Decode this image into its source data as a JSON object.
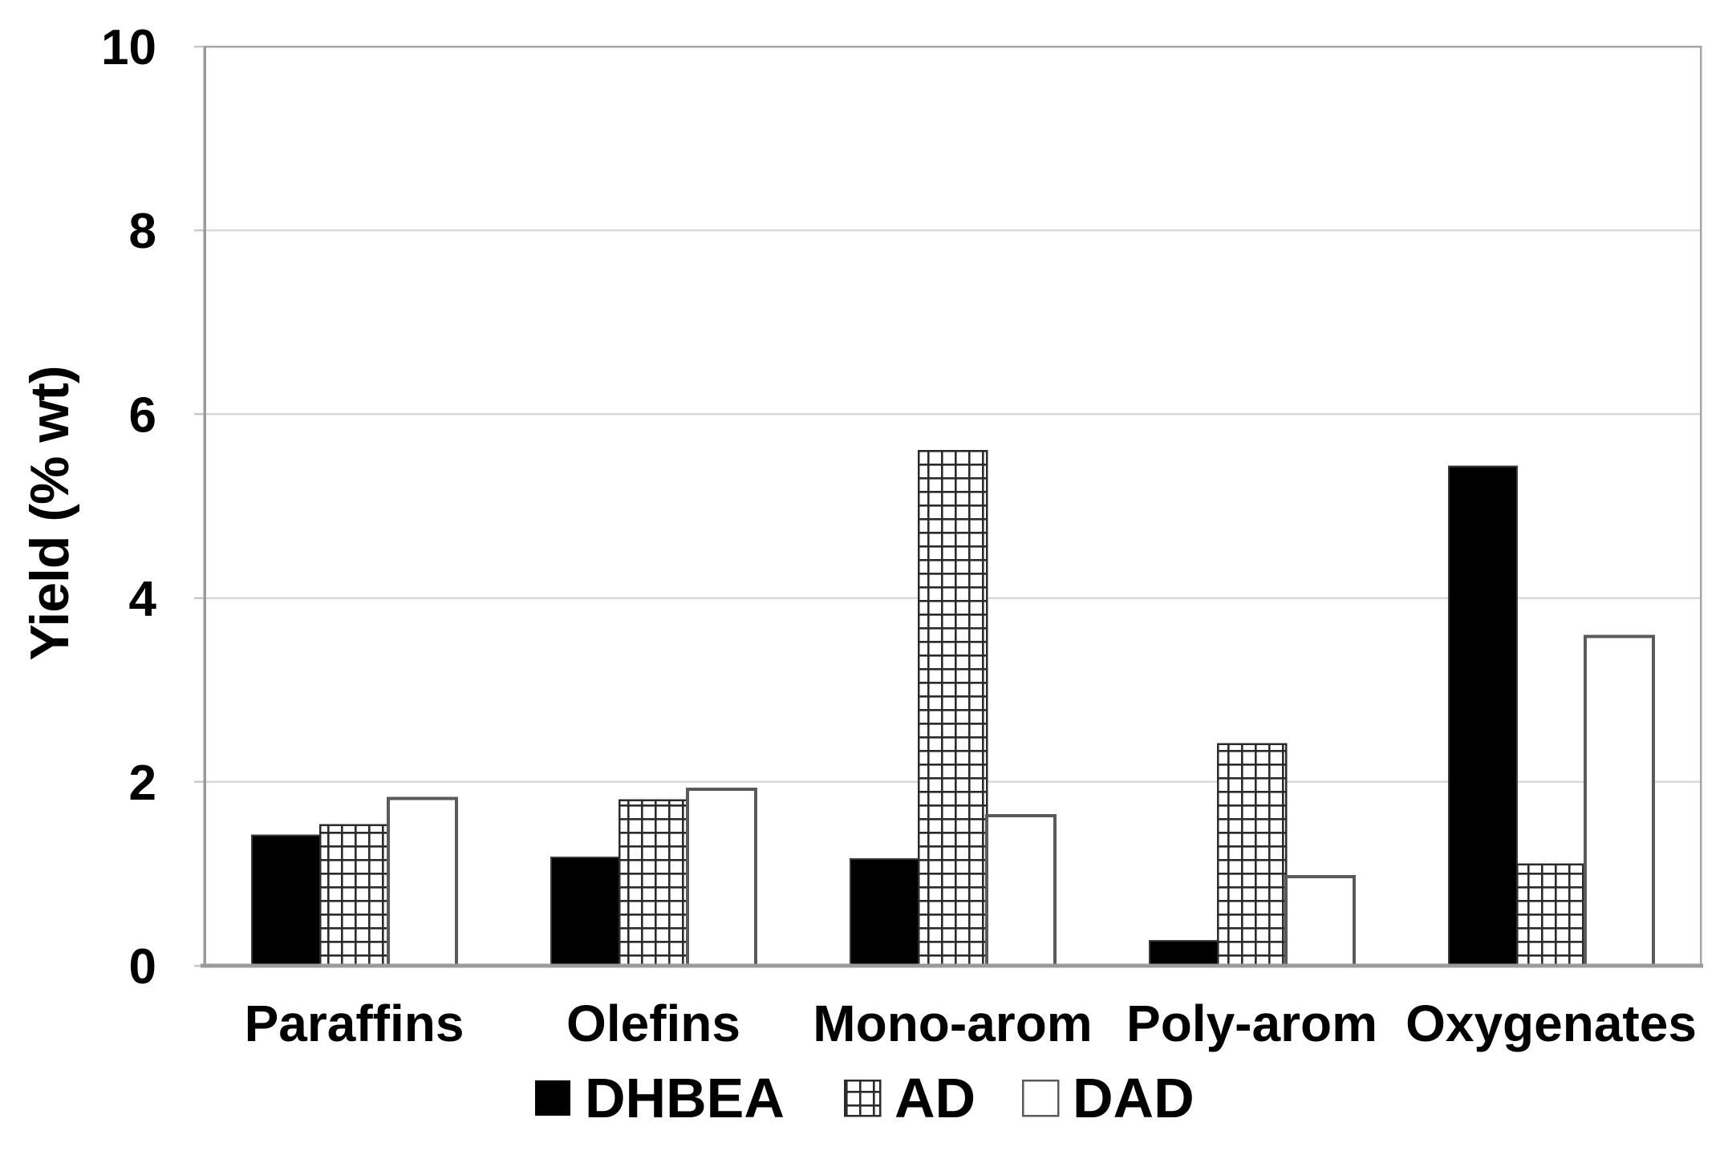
{
  "page": {
    "background": "#ffffff"
  },
  "chart_data": {
    "type": "bar",
    "title": "",
    "ylabel": "Yield (% wt)",
    "xlabel": "",
    "ylim": [
      0,
      10
    ],
    "yticks": [
      0,
      2,
      4,
      6,
      8,
      10
    ],
    "grid": "horizontal",
    "legend_position": "bottom-center",
    "categories": [
      "Paraffins",
      "Olefins",
      "Mono-arom",
      "Poly-arom",
      "Oxygenates"
    ],
    "series": [
      {
        "name": "DHBEA",
        "swatch": "solid-black",
        "values": [
          1.42,
          1.18,
          1.16,
          0.27,
          5.43
        ]
      },
      {
        "name": "AD",
        "swatch": "black-crosshatch-on-white",
        "values": [
          1.53,
          1.8,
          5.6,
          2.41,
          1.1
        ]
      },
      {
        "name": "DAD",
        "swatch": "white-outlined",
        "values": [
          1.82,
          1.92,
          1.63,
          0.97,
          3.58
        ]
      }
    ]
  },
  "colors": {
    "bar_black": "#000000",
    "bar_black_outline": "#3a3a3a",
    "crosshatch_line": "#2b2b2b",
    "white_bar_outline": "#5a5a5a",
    "gridline": "#d9d9d9",
    "tick_mark": "#c9c9c9",
    "axis_line": "#9a9a9a",
    "plot_border": "#a6a6a6",
    "text": "#000000",
    "background": "#ffffff"
  }
}
